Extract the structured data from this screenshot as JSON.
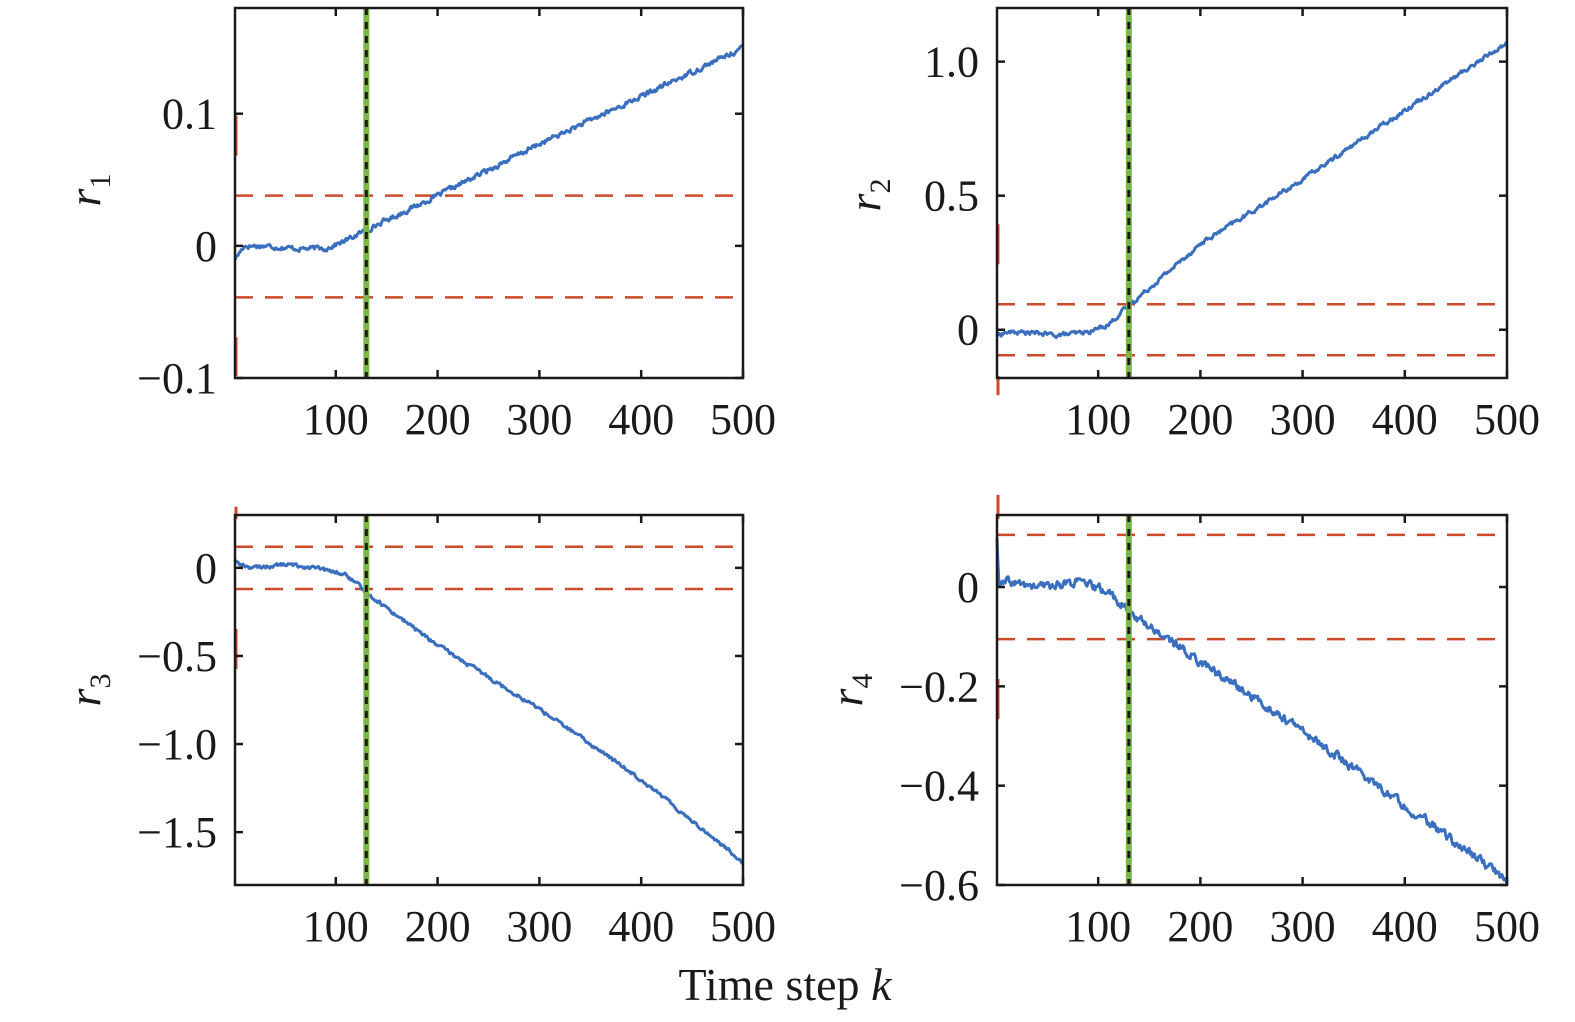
{
  "figure": {
    "xlabel_text": "Time step ",
    "xlabel_var": "k"
  },
  "colors": {
    "signal": "#3a6fbf",
    "threshold": "#cc4a2a",
    "detection_green": "#7ab648",
    "detection_black": "#1a1a1a",
    "axes": "#1a1a1a"
  },
  "chart_data": [
    {
      "type": "line",
      "ylabel_main": "r",
      "ylabel_sub": "1",
      "xlim": [
        1,
        500
      ],
      "ylim": [
        -0.1,
        0.18
      ],
      "xticks": [
        100,
        200,
        300,
        400,
        500
      ],
      "xtick_labels": [
        "100",
        "200",
        "300",
        "400",
        "500"
      ],
      "yticks": [
        -0.1,
        0,
        0.1
      ],
      "ytick_labels": [
        "−0.1",
        "0",
        "0.1"
      ],
      "series": [
        {
          "x": [
            1,
            10,
            30,
            60,
            90,
            110,
            130,
            200,
            300,
            400,
            500
          ],
          "y": [
            -0.01,
            0.0,
            0.0,
            -0.002,
            -0.002,
            0.004,
            0.012,
            0.038,
            0.077,
            0.113,
            0.15
          ]
        }
      ],
      "thresholds": [
        0.038,
        -0.039
      ],
      "detection_k": 130
    },
    {
      "type": "line",
      "ylabel_main": "r",
      "ylabel_sub": "2",
      "xlim": [
        1,
        500
      ],
      "ylim": [
        -0.18,
        1.2
      ],
      "xticks": [
        100,
        200,
        300,
        400,
        500
      ],
      "xtick_labels": [
        "100",
        "200",
        "300",
        "400",
        "500"
      ],
      "yticks": [
        0,
        0.5,
        1.0
      ],
      "ytick_labels": [
        "0",
        "0.5",
        "1.0"
      ],
      "series": [
        {
          "x": [
            1,
            10,
            30,
            60,
            90,
            110,
            130,
            200,
            300,
            400,
            500
          ],
          "y": [
            -0.02,
            -0.01,
            -0.01,
            -0.02,
            -0.01,
            0.02,
            0.09,
            0.32,
            0.56,
            0.82,
            1.07
          ]
        }
      ],
      "thresholds": [
        0.095,
        -0.095
      ],
      "detection_k": 130
    },
    {
      "type": "line",
      "ylabel_main": "r",
      "ylabel_sub": "3",
      "xlim": [
        1,
        500
      ],
      "ylim": [
        -1.8,
        0.3
      ],
      "xticks": [
        100,
        200,
        300,
        400,
        500
      ],
      "xtick_labels": [
        "100",
        "200",
        "300",
        "400",
        "500"
      ],
      "yticks": [
        -1.5,
        -1.0,
        -0.5,
        0
      ],
      "ytick_labels": [
        "−1.5",
        "−1.0",
        "−0.5",
        "0"
      ],
      "series": [
        {
          "x": [
            1,
            5,
            20,
            50,
            80,
            110,
            130,
            200,
            300,
            400,
            500
          ],
          "y": [
            0.05,
            0.02,
            0.0,
            0.02,
            0.0,
            -0.04,
            -0.14,
            -0.44,
            -0.8,
            -1.2,
            -1.67
          ]
        }
      ],
      "thresholds": [
        0.12,
        -0.12
      ],
      "detection_k": 130
    },
    {
      "type": "line",
      "ylabel_main": "r",
      "ylabel_sub": "4",
      "xlim": [
        1,
        500
      ],
      "ylim": [
        -0.6,
        0.145
      ],
      "xticks": [
        100,
        200,
        300,
        400,
        500
      ],
      "xtick_labels": [
        "100",
        "200",
        "300",
        "400",
        "500"
      ],
      "yticks": [
        -0.6,
        -0.4,
        -0.2,
        0
      ],
      "ytick_labels": [
        "−0.6",
        "−0.4",
        "−0.2",
        "0"
      ],
      "series": [
        {
          "x": [
            1,
            3,
            10,
            40,
            80,
            110,
            130,
            200,
            300,
            400,
            500
          ],
          "y": [
            0.1,
            0.0,
            0.01,
            0.0,
            0.01,
            -0.01,
            -0.05,
            -0.15,
            -0.29,
            -0.44,
            -0.59
          ]
        }
      ],
      "thresholds": [
        0.105,
        -0.105
      ],
      "detection_k": 130
    }
  ]
}
